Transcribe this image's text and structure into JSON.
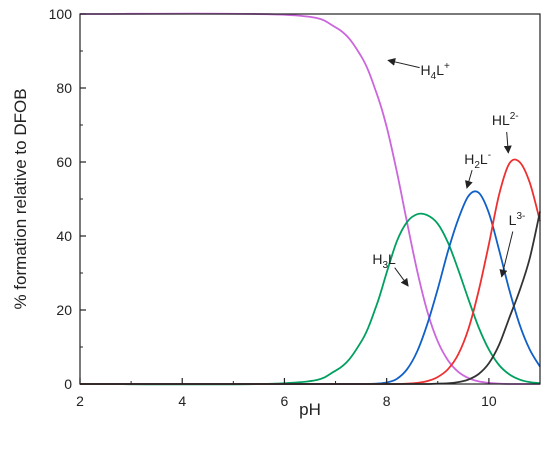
{
  "chart_data": {
    "type": "line",
    "xlabel": "pH",
    "ylabel": "% formation relative to DFOB",
    "xlim": [
      2,
      11
    ],
    "ylim": [
      0,
      100
    ],
    "xticks": [
      2,
      4,
      6,
      8,
      10
    ],
    "yticks": [
      0,
      20,
      40,
      60,
      80,
      100
    ],
    "grid": false,
    "x": [
      2.0,
      6.0,
      7.0,
      7.5,
      7.8,
      8.0,
      8.2,
      8.4,
      8.6,
      8.8,
      9.0,
      9.2,
      9.4,
      9.6,
      9.8,
      10.0,
      10.2,
      10.4,
      10.6,
      10.8,
      11.0
    ],
    "series": [
      {
        "key": "H4L",
        "color": "#cc66dd",
        "values": [
          100,
          99.8,
          96.4,
          88.6,
          78.7,
          69.5,
          57.3,
          43.6,
          30.4,
          19.4,
          11.5,
          6.4,
          3.3,
          1.6,
          0.7,
          0.3,
          0.1,
          0,
          0,
          0,
          0
        ]
      },
      {
        "key": "H3L",
        "color": "#00a060",
        "values": [
          0,
          0.2,
          3.6,
          11.4,
          21.2,
          30.1,
          38.6,
          43.8,
          45.9,
          45.6,
          43.3,
          38.2,
          30.9,
          22.9,
          15.3,
          9.3,
          5.1,
          2.6,
          1.2,
          0.5,
          0.2
        ]
      },
      {
        "key": "H2L",
        "color": "#1060c8",
        "values": [
          0,
          0,
          0,
          0,
          0.1,
          0.4,
          1.4,
          4.0,
          8.9,
          16.4,
          25.7,
          35.9,
          44.5,
          50.8,
          51.7,
          46.2,
          36.2,
          25.4,
          16.1,
          9.3,
          4.7
        ]
      },
      {
        "key": "HL",
        "color": "#ee3030",
        "values": [
          0,
          0,
          0,
          0,
          0,
          0,
          0,
          0.1,
          0.3,
          0.8,
          1.9,
          4.0,
          8.0,
          14.9,
          25.2,
          37.8,
          51.2,
          59.6,
          60.0,
          54.4,
          44.0
        ]
      },
      {
        "key": "L",
        "color": "#333333",
        "values": [
          0,
          0,
          0,
          0,
          0,
          0,
          0,
          0,
          0,
          0,
          0.1,
          0.2,
          0.5,
          1.2,
          2.7,
          5.6,
          10.6,
          17.9,
          25.2,
          34.0,
          46.6
        ]
      }
    ],
    "annotations": [
      {
        "key": "H4L",
        "base": "H",
        "sub": "4",
        "base2": "L",
        "sup": "+",
        "text_x": 8.95,
        "text_y": 83.5,
        "arrow_x": 8.03,
        "arrow_y": 87.5
      },
      {
        "key": "H3L",
        "base": "H",
        "sub": "3",
        "base2": "L",
        "sup": "",
        "text_x": 7.95,
        "text_y": 32.5,
        "arrow_x": 8.42,
        "arrow_y": 26.5
      },
      {
        "key": "H2L",
        "base": "H",
        "sub": "2",
        "base2": "L",
        "sup": "-",
        "text_x": 9.78,
        "text_y": 59.5,
        "arrow_x": 9.57,
        "arrow_y": 53.0
      },
      {
        "key": "HL",
        "base": "HL",
        "sub": "",
        "base2": "",
        "sup": "2-",
        "text_x": 10.32,
        "text_y": 70.0,
        "arrow_x": 10.38,
        "arrow_y": 62.5
      },
      {
        "key": "L",
        "base": "L",
        "sub": "",
        "base2": "",
        "sup": "3-",
        "text_x": 10.55,
        "text_y": 43.0,
        "arrow_x": 10.25,
        "arrow_y": 29.0
      }
    ]
  }
}
